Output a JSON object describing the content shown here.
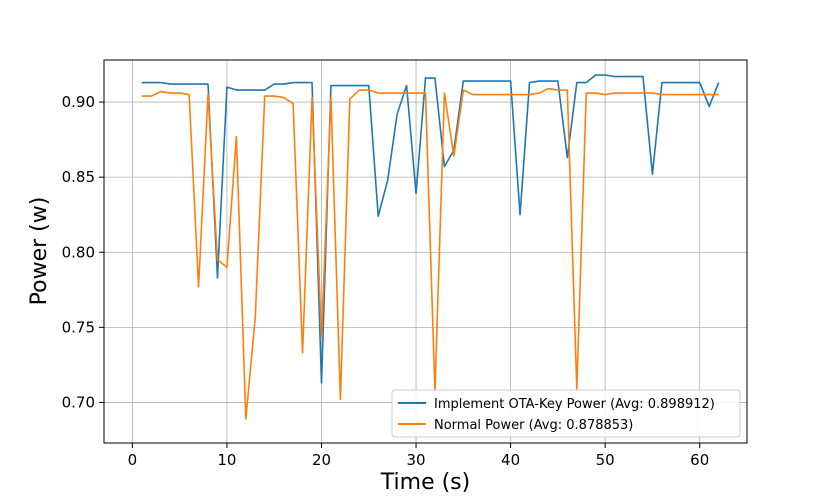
{
  "chart_data": {
    "type": "line",
    "title": "",
    "xlabel": "Time (s)",
    "ylabel": "Power (w)",
    "xlim": [
      -3,
      65
    ],
    "ylim": [
      0.673,
      0.928
    ],
    "xticks": [
      0,
      10,
      20,
      30,
      40,
      50,
      60
    ],
    "yticks": [
      0.7,
      0.75,
      0.8,
      0.85,
      0.9
    ],
    "ytick_labels": [
      "0.70",
      "0.75",
      "0.80",
      "0.85",
      "0.90"
    ],
    "grid": true,
    "legend_position": "lower-right",
    "series": [
      {
        "name": "Implement OTA-Key Power (Avg: 0.898912)",
        "color": "#1f77b4",
        "x": [
          1,
          2,
          3,
          4,
          5,
          6,
          7,
          8,
          9,
          10,
          11,
          12,
          13,
          14,
          15,
          16,
          17,
          18,
          19,
          20,
          21,
          22,
          23,
          24,
          25,
          26,
          27,
          28,
          29,
          30,
          31,
          32,
          33,
          34,
          35,
          36,
          37,
          38,
          39,
          40,
          41,
          42,
          43,
          44,
          45,
          46,
          47,
          48,
          49,
          50,
          51,
          52,
          53,
          54,
          55,
          56,
          57,
          58,
          59,
          60,
          61,
          62
        ],
        "values": [
          0.913,
          0.913,
          0.913,
          0.912,
          0.912,
          0.912,
          0.912,
          0.912,
          0.783,
          0.91,
          0.908,
          0.908,
          0.908,
          0.908,
          0.912,
          0.912,
          0.913,
          0.913,
          0.913,
          0.713,
          0.911,
          0.911,
          0.911,
          0.911,
          0.911,
          0.824,
          0.848,
          0.892,
          0.911,
          0.839,
          0.916,
          0.916,
          0.857,
          0.868,
          0.914,
          0.914,
          0.914,
          0.914,
          0.914,
          0.914,
          0.825,
          0.913,
          0.914,
          0.914,
          0.914,
          0.863,
          0.913,
          0.913,
          0.918,
          0.918,
          0.917,
          0.917,
          0.917,
          0.917,
          0.852,
          0.913,
          0.913,
          0.913,
          0.913,
          0.913,
          0.897,
          0.913
        ]
      },
      {
        "name": "Normal Power (Avg: 0.878853)",
        "color": "#ff7f0e",
        "x": [
          1,
          2,
          3,
          4,
          5,
          6,
          7,
          8,
          9,
          10,
          11,
          12,
          13,
          14,
          15,
          16,
          17,
          18,
          19,
          20,
          21,
          22,
          23,
          24,
          25,
          26,
          27,
          28,
          29,
          30,
          31,
          32,
          33,
          34,
          35,
          36,
          37,
          38,
          39,
          40,
          41,
          42,
          43,
          44,
          45,
          46,
          47,
          48,
          49,
          50,
          51,
          52,
          53,
          54,
          55,
          56,
          57,
          58,
          59,
          60,
          61,
          62
        ],
        "values": [
          0.904,
          0.904,
          0.907,
          0.906,
          0.906,
          0.905,
          0.777,
          0.905,
          0.795,
          0.79,
          0.877,
          0.689,
          0.757,
          0.904,
          0.904,
          0.903,
          0.899,
          0.733,
          0.903,
          0.744,
          0.903,
          0.702,
          0.902,
          0.908,
          0.908,
          0.906,
          0.906,
          0.906,
          0.906,
          0.906,
          0.906,
          0.707,
          0.906,
          0.864,
          0.908,
          0.905,
          0.905,
          0.905,
          0.905,
          0.905,
          0.905,
          0.905,
          0.906,
          0.909,
          0.908,
          0.908,
          0.709,
          0.906,
          0.906,
          0.905,
          0.906,
          0.906,
          0.906,
          0.906,
          0.906,
          0.905,
          0.905,
          0.905,
          0.905,
          0.905,
          0.905,
          0.905
        ]
      }
    ]
  }
}
